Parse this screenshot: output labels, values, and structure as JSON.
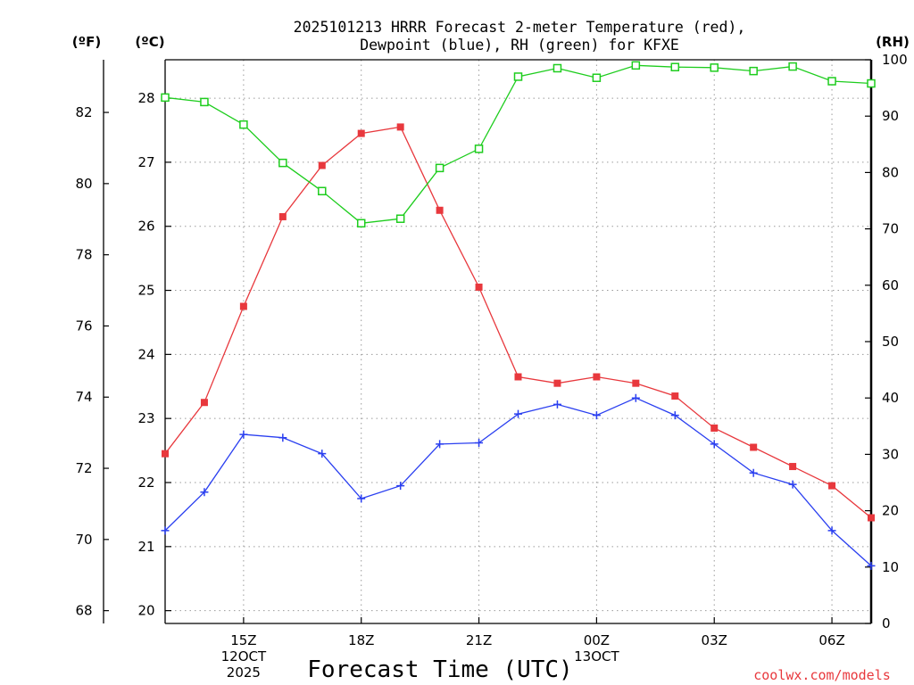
{
  "chart_data": {
    "type": "line",
    "title_line1": "2025101213 HRRR Forecast 2-meter Temperature (red),",
    "title_line2": "Dewpoint (blue), RH (green) for KFXE",
    "xlabel": "Forecast Time (UTC)",
    "left_unit_f": "(ºF)",
    "left_unit_c": "(ºC)",
    "right_unit": "(RH)",
    "credit": "coolwx.com/models",
    "colors": {
      "temp": "#e8383d",
      "dewpoint": "#2a3ff0",
      "rh": "#1ecd1e",
      "axis": "#000000",
      "grid": "#9a9a9a",
      "credit": "#e8383d"
    },
    "x": [
      "13Z",
      "14Z",
      "15Z",
      "16Z",
      "17Z",
      "18Z",
      "19Z",
      "20Z",
      "21Z",
      "22Z",
      "23Z",
      "00Z",
      "01Z",
      "02Z",
      "03Z",
      "04Z",
      "05Z",
      "06Z",
      "07Z"
    ],
    "x_ticks": [
      {
        "index": 2,
        "label": "15Z",
        "sub1": "12OCT",
        "sub2": "2025"
      },
      {
        "index": 5,
        "label": "18Z",
        "sub1": "",
        "sub2": ""
      },
      {
        "index": 8,
        "label": "21Z",
        "sub1": "",
        "sub2": ""
      },
      {
        "index": 11,
        "label": "00Z",
        "sub1": "13OCT",
        "sub2": ""
      },
      {
        "index": 14,
        "label": "03Z",
        "sub1": "",
        "sub2": ""
      },
      {
        "index": 17,
        "label": "06Z",
        "sub1": "",
        "sub2": ""
      }
    ],
    "celsius_ticks": [
      20,
      21,
      22,
      23,
      24,
      25,
      26,
      27,
      28
    ],
    "fahrenheit_ticks": [
      68,
      70,
      72,
      74,
      76,
      78,
      80,
      82
    ],
    "rh_ticks": [
      0,
      10,
      20,
      30,
      40,
      50,
      60,
      70,
      80,
      90,
      100
    ],
    "ylim_c": [
      19.8,
      28.6
    ],
    "ylim_rh": [
      0,
      100
    ],
    "series": [
      {
        "name": "Temperature (°C)",
        "axis": "c",
        "marker": "filled-square",
        "values": [
          22.45,
          23.25,
          24.75,
          26.15,
          26.95,
          27.45,
          27.55,
          26.25,
          25.05,
          23.65,
          23.55,
          23.65,
          23.55,
          23.35,
          22.85,
          22.55,
          22.25,
          21.95,
          21.45
        ]
      },
      {
        "name": "Dewpoint (°C)",
        "axis": "c",
        "marker": "plus",
        "values": [
          21.25,
          21.85,
          22.75,
          22.7,
          22.45,
          21.75,
          21.95,
          22.6,
          22.62,
          23.07,
          23.22,
          23.05,
          23.32,
          23.05,
          22.6,
          22.15,
          21.97,
          21.25,
          20.7
        ]
      },
      {
        "name": "RH (%)",
        "axis": "rh",
        "marker": "open-square",
        "values": [
          93.3,
          92.5,
          88.5,
          81.7,
          76.7,
          71.0,
          71.8,
          80.8,
          84.2,
          97.0,
          98.5,
          96.8,
          99.0,
          98.7,
          98.6,
          98.0,
          98.8,
          96.2,
          95.8
        ]
      }
    ]
  }
}
